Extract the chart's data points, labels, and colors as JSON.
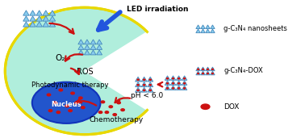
{
  "bg_color": "#ffffff",
  "cell_color": "#b0eedc",
  "cell_border_color": "#e8d800",
  "nucleus_color": "#2255cc",
  "nanosheet_color": "#88ccee",
  "nanosheet_edge_color": "#4488bb",
  "dot_color": "#cc1111",
  "arrow_red": "#cc1111",
  "arrow_blue": "#2255dd",
  "led_text": "LED irradiation",
  "o2_text": "O₂",
  "ros_text": "ROS",
  "pdt_text": "Photodynamic therapy",
  "ph_text": "pH < 6.0",
  "chemo_text": "Chemotherapy",
  "nucleus_text": "Nucleus",
  "legend1": "g-C₃N₄ nanosheets",
  "legend2": "g-C₃N₄-DOX",
  "legend3": "DOX",
  "figsize": [
    3.78,
    1.71
  ],
  "dpi": 100
}
